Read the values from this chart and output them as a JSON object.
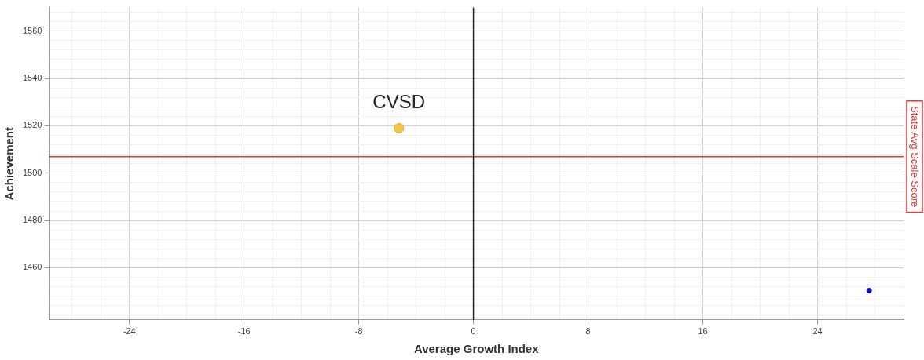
{
  "chart_data": {
    "type": "scatter",
    "xlabel": "Average Growth Index",
    "ylabel": "Achievement",
    "xlim": [
      -29.6,
      30
    ],
    "ylim": [
      1438,
      1570
    ],
    "xticks": [
      {
        "value": -28,
        "label": null
      },
      {
        "value": -26,
        "label": null
      },
      -24,
      {
        "value": -22,
        "label": null
      },
      {
        "value": -20,
        "label": null
      },
      {
        "value": -18,
        "label": null
      },
      -16,
      {
        "value": -14,
        "label": null
      },
      {
        "value": -12,
        "label": null
      },
      {
        "value": -10,
        "label": null
      },
      -8,
      {
        "value": -6,
        "label": null
      },
      {
        "value": -4,
        "label": null
      },
      {
        "value": -2,
        "label": null
      },
      0,
      {
        "value": 2,
        "label": null
      },
      {
        "value": 4,
        "label": null
      },
      {
        "value": 6,
        "label": null
      },
      8,
      {
        "value": 10,
        "label": null
      },
      {
        "value": 12,
        "label": null
      },
      {
        "value": 14,
        "label": null
      },
      16,
      {
        "value": 18,
        "label": null
      },
      {
        "value": 20,
        "label": null
      },
      {
        "value": 22,
        "label": null
      },
      24,
      {
        "value": 26,
        "label": null
      },
      {
        "value": 28,
        "label": null
      }
    ],
    "yticks": [
      {
        "value": 1440,
        "label": null
      },
      {
        "value": 1444,
        "label": null
      },
      {
        "value": 1448,
        "label": null
      },
      {
        "value": 1452,
        "label": null
      },
      {
        "value": 1456,
        "label": null
      },
      1460,
      {
        "value": 1464,
        "label": null
      },
      {
        "value": 1468,
        "label": null
      },
      {
        "value": 1472,
        "label": null
      },
      {
        "value": 1476,
        "label": null
      },
      1480,
      {
        "value": 1484,
        "label": null
      },
      {
        "value": 1488,
        "label": null
      },
      {
        "value": 1492,
        "label": null
      },
      {
        "value": 1496,
        "label": null
      },
      1500,
      {
        "value": 1504,
        "label": null
      },
      {
        "value": 1508,
        "label": null
      },
      {
        "value": 1512,
        "label": null
      },
      {
        "value": 1516,
        "label": null
      },
      1520,
      {
        "value": 1524,
        "label": null
      },
      {
        "value": 1528,
        "label": null
      },
      {
        "value": 1532,
        "label": null
      },
      {
        "value": 1536,
        "label": null
      },
      1540,
      {
        "value": 1544,
        "label": null
      },
      {
        "value": 1548,
        "label": null
      },
      {
        "value": 1552,
        "label": null
      },
      {
        "value": 1556,
        "label": null
      },
      1560,
      {
        "value": 1564,
        "label": null
      },
      {
        "value": 1568,
        "label": null
      }
    ],
    "grid": true,
    "marker": "circle",
    "series": [
      {
        "color": "#f5c842",
        "x": [
          -5.2
        ],
        "values": [
          1519
        ]
      },
      {
        "color": "#1010c0",
        "x": [
          27.6
        ],
        "values": [
          1450.4
        ]
      }
    ],
    "annotations": [
      {
        "text": "CVSD",
        "x": -5.2,
        "y": 1519
      }
    ],
    "ref_lines": [
      {
        "axis": "y",
        "value": 1507,
        "label": "State Avg Scale Score",
        "color": "#e53935"
      },
      {
        "axis": "x",
        "value": 0,
        "color": "#222222"
      }
    ]
  }
}
